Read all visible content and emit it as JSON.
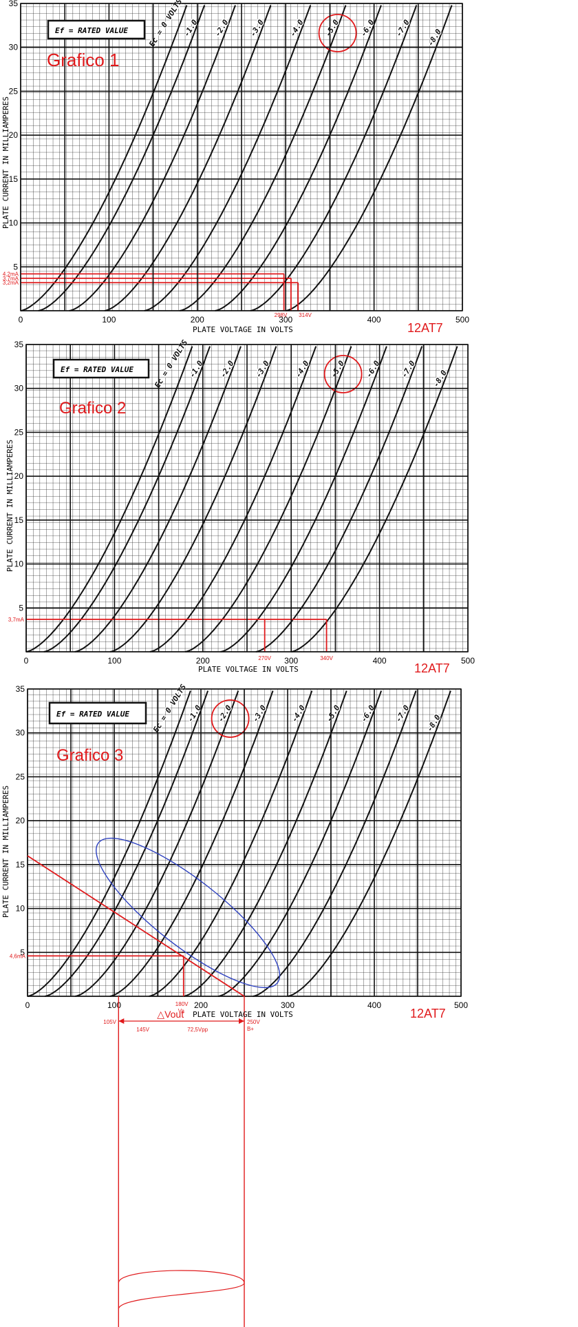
{
  "chart_data": [
    {
      "type": "line",
      "title": "Grafico 1",
      "tube": "12AT7",
      "legend_box": "Ef = RATED VALUE",
      "xlabel": "PLATE VOLTAGE IN VOLTS",
      "ylabel": "PLATE CURRENT IN MILLIAMPERES",
      "xlim": [
        0,
        500
      ],
      "ylim": [
        0,
        35
      ],
      "xticks": [
        "0",
        "100",
        "200",
        "300",
        "400",
        "500"
      ],
      "yticks": [
        "5",
        "10",
        "15",
        "20",
        "25",
        "30",
        "35"
      ],
      "grid": true,
      "series_labels": [
        "Ec = 0 VOLTS",
        "-1.0",
        "-2.0",
        "-3.0",
        "-4.0",
        "-5.0",
        "-6.0",
        "-7.0",
        "-8.0"
      ],
      "circled": "-5.0",
      "annotations": {
        "currents": [
          "4,2mA",
          "3,7mA",
          "3,2mA"
        ],
        "current_values": [
          4.2,
          3.7,
          3.2
        ],
        "voltages": [
          "298V",
          "314V"
        ],
        "voltage_values": [
          298,
          306,
          314
        ]
      }
    },
    {
      "type": "line",
      "title": "Grafico 2",
      "tube": "12AT7",
      "legend_box": "Ef = RATED VALUE",
      "xlabel": "PLATE VOLTAGE IN VOLTS",
      "ylabel": "PLATE CURRENT IN MILLIAMPERES",
      "xlim": [
        0,
        500
      ],
      "ylim": [
        0,
        35
      ],
      "xticks": [
        "0",
        "100",
        "200",
        "300",
        "400",
        "500"
      ],
      "yticks": [
        "5",
        "10",
        "15",
        "20",
        "25",
        "30",
        "35"
      ],
      "grid": true,
      "series_labels": [
        "Ec = 0 VOLTS",
        "-1.0",
        "-2.0",
        "-3.0",
        "-4.0",
        "-5.0",
        "-6.0",
        "-7.0",
        "-8.0"
      ],
      "circled": "-5.0",
      "annotations": {
        "currents": [
          "3,7mA"
        ],
        "current_values": [
          3.7
        ],
        "voltages": [
          "270V",
          "340V"
        ],
        "voltage_values": [
          270,
          340
        ]
      }
    },
    {
      "type": "line",
      "title": "Grafico 3",
      "tube": "12AT7",
      "legend_box": "Ef = RATED VALUE",
      "xlabel": "PLATE VOLTAGE IN VOLTS",
      "ylabel": "PLATE CURRENT IN MILLIAMPERES",
      "xlim": [
        0,
        500
      ],
      "ylim": [
        0,
        35
      ],
      "xticks": [
        "0",
        "100",
        "200",
        "300",
        "400",
        "500"
      ],
      "yticks": [
        "5",
        "10",
        "15",
        "20",
        "25",
        "30",
        "35"
      ],
      "grid": true,
      "series_labels": [
        "Ec = 0 VOLTS",
        "-1.0",
        "-2.0",
        "-3.0",
        "-4.0",
        "-5.0",
        "-6.0",
        "-7.0",
        "-8.0"
      ],
      "circled": "-2.0",
      "load_line": {
        "from": [
          0,
          16
        ],
        "to": [
          250,
          0
        ]
      },
      "operating_point": {
        "v": 180,
        "i": 4.6
      },
      "annotations": {
        "current": "4,6mA",
        "va": "180V",
        "va_sub": "Va",
        "bplus": "250V",
        "bplus_sub": "B+",
        "vmin": "105V",
        "delta_a": "145V",
        "vpp": "72,5Vpp",
        "vout": "△Vout",
        "vmin_value": 105,
        "bplus_value": 250
      }
    }
  ],
  "colors": {
    "annotation": "#e0191b",
    "curve": "#111111",
    "grid": "#2a2a2a",
    "ellipse": "#2b3fbf"
  }
}
